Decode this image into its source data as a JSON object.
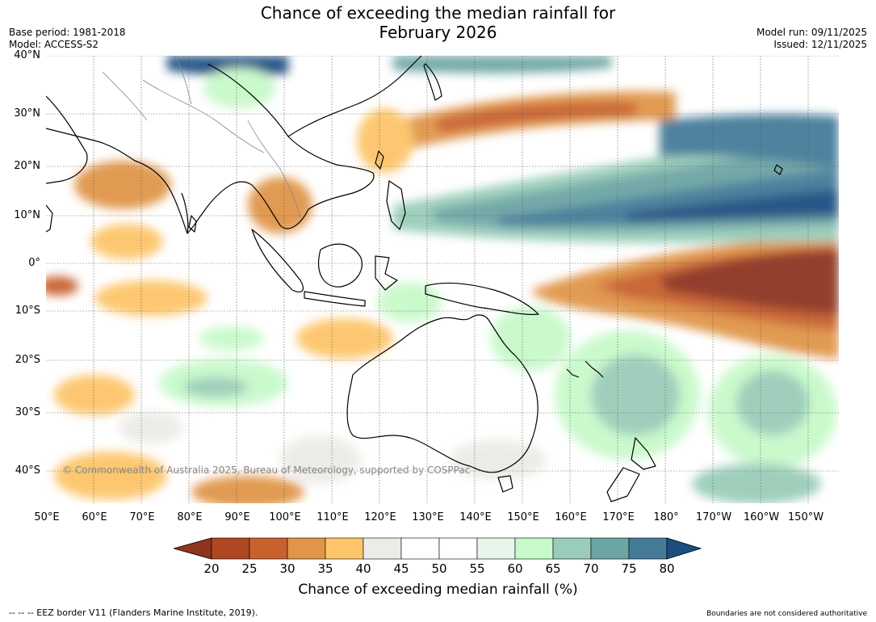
{
  "header": {
    "title_line1": "Chance of exceeding the median rainfall for",
    "title_line2": "February 2026",
    "base_period": "Base period: 1981-2018",
    "model": "Model: ACCESS-S2",
    "model_run": "Model run: 09/11/2025",
    "issued": "Issued: 12/11/2025"
  },
  "map": {
    "lat_labels": [
      "40°N",
      "30°N",
      "20°N",
      "10°N",
      "0°",
      "10°S",
      "20°S",
      "30°S",
      "40°S"
    ],
    "lon_labels": [
      "50°E",
      "60°E",
      "70°E",
      "80°E",
      "90°E",
      "100°E",
      "110°E",
      "120°E",
      "130°E",
      "140°E",
      "150°E",
      "160°E",
      "170°E",
      "180°",
      "170°W",
      "160°W",
      "150°W"
    ],
    "copyright": "© Commonwealth of Australia 2025, Bureau of Meteorology, supported by COSPPac",
    "ocean_color": "#ffffff",
    "land_outline_color": "#000000"
  },
  "colorbar": {
    "title": "Chance of exceeding median rainfall (%)",
    "ticks": [
      "20",
      "25",
      "30",
      "35",
      "40",
      "45",
      "50",
      "55",
      "60",
      "65",
      "70",
      "75",
      "80"
    ],
    "colors": [
      "#8e3420",
      "#ae4722",
      "#c8612e",
      "#e0954a",
      "#fdc56a",
      "#ecebe6",
      "#ffffff",
      "#ffffff",
      "#e8f5ea",
      "#c8f9ca",
      "#9acdb9",
      "#6da5a5",
      "#457b99",
      "#1b4f82"
    ]
  },
  "footer": {
    "eez": "--  --  -- EEZ border V11 (Flanders Marine Institute, 2019).",
    "disclaimer": "Boundaries are not considered authoritative"
  }
}
